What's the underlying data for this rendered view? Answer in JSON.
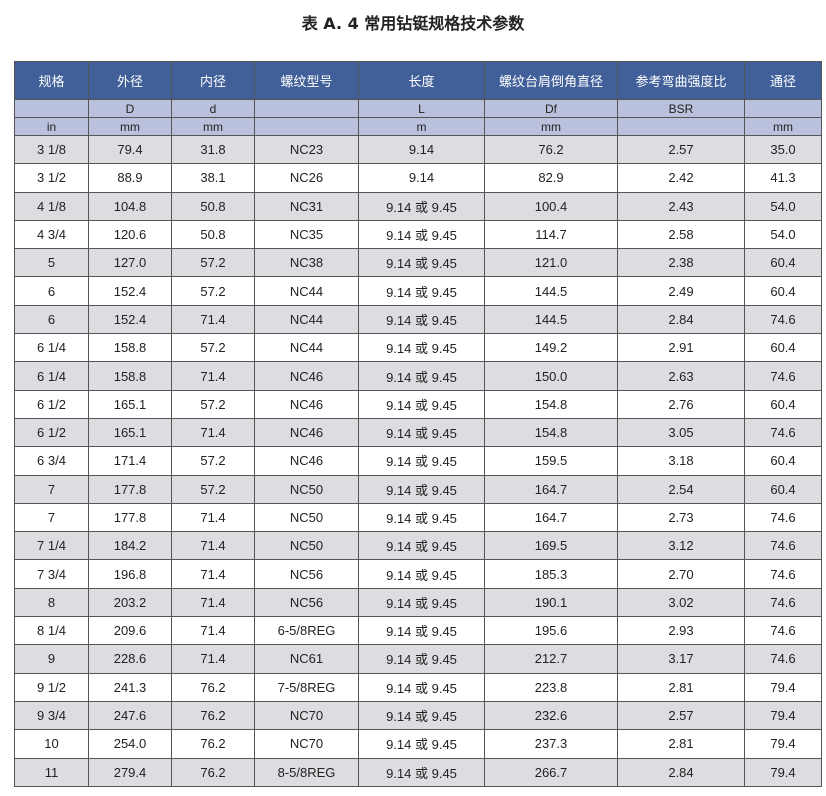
{
  "title": "表 A. 4 常用钻铤规格技术参数",
  "headers": [
    "规格",
    "外径",
    "内径",
    "螺纹型号",
    "长度",
    "螺纹台肩倒角直径",
    "参考弯曲强度比",
    "通径"
  ],
  "symbols": [
    "",
    "D",
    "d",
    "",
    "L",
    "Df",
    "BSR",
    ""
  ],
  "units": [
    "in",
    "mm",
    "mm",
    "",
    "m",
    "mm",
    "",
    "mm"
  ],
  "rows": [
    [
      "3 1/8",
      "79.4",
      "31.8",
      "NC23",
      "9.14",
      "76.2",
      "2.57",
      "35.0"
    ],
    [
      "3 1/2",
      "88.9",
      "38.1",
      "NC26",
      "9.14",
      "82.9",
      "2.42",
      "41.3"
    ],
    [
      "4 1/8",
      "104.8",
      "50.8",
      "NC31",
      "9.14 或 9.45",
      "100.4",
      "2.43",
      "54.0"
    ],
    [
      "4 3/4",
      "120.6",
      "50.8",
      "NC35",
      "9.14 或 9.45",
      "114.7",
      "2.58",
      "54.0"
    ],
    [
      "5",
      "127.0",
      "57.2",
      "NC38",
      "9.14 或 9.45",
      "121.0",
      "2.38",
      "60.4"
    ],
    [
      "6",
      "152.4",
      "57.2",
      "NC44",
      "9.14 或 9.45",
      "144.5",
      "2.49",
      "60.4"
    ],
    [
      "6",
      "152.4",
      "71.4",
      "NC44",
      "9.14 或 9.45",
      "144.5",
      "2.84",
      "74.6"
    ],
    [
      "6 1/4",
      "158.8",
      "57.2",
      "NC44",
      "9.14 或 9.45",
      "149.2",
      "2.91",
      "60.4"
    ],
    [
      "6 1/4",
      "158.8",
      "71.4",
      "NC46",
      "9.14 或 9.45",
      "150.0",
      "2.63",
      "74.6"
    ],
    [
      "6 1/2",
      "165.1",
      "57.2",
      "NC46",
      "9.14 或 9.45",
      "154.8",
      "2.76",
      "60.4"
    ],
    [
      "6 1/2",
      "165.1",
      "71.4",
      "NC46",
      "9.14 或 9.45",
      "154.8",
      "3.05",
      "74.6"
    ],
    [
      "6 3/4",
      "171.4",
      "57.2",
      "NC46",
      "9.14 或 9.45",
      "159.5",
      "3.18",
      "60.4"
    ],
    [
      "7",
      "177.8",
      "57.2",
      "NC50",
      "9.14 或 9.45",
      "164.7",
      "2.54",
      "60.4"
    ],
    [
      "7",
      "177.8",
      "71.4",
      "NC50",
      "9.14 或 9.45",
      "164.7",
      "2.73",
      "74.6"
    ],
    [
      "7 1/4",
      "184.2",
      "71.4",
      "NC50",
      "9.14 或 9.45",
      "169.5",
      "3.12",
      "74.6"
    ],
    [
      "7 3/4",
      "196.8",
      "71.4",
      "NC56",
      "9.14 或 9.45",
      "185.3",
      "2.70",
      "74.6"
    ],
    [
      "8",
      "203.2",
      "71.4",
      "NC56",
      "9.14 或 9.45",
      "190.1",
      "3.02",
      "74.6"
    ],
    [
      "8 1/4",
      "209.6",
      "71.4",
      "6-5/8REG",
      "9.14 或 9.45",
      "195.6",
      "2.93",
      "74.6"
    ],
    [
      "9",
      "228.6",
      "71.4",
      "NC61",
      "9.14 或 9.45",
      "212.7",
      "3.17",
      "74.6"
    ],
    [
      "9 1/2",
      "241.3",
      "76.2",
      "7-5/8REG",
      "9.14 或 9.45",
      "223.8",
      "2.81",
      "79.4"
    ],
    [
      "9 3/4",
      "247.6",
      "76.2",
      "NC70",
      "9.14 或 9.45",
      "232.6",
      "2.57",
      "79.4"
    ],
    [
      "10",
      "254.0",
      "76.2",
      "NC70",
      "9.14 或 9.45",
      "237.3",
      "2.81",
      "79.4"
    ],
    [
      "11",
      "279.4",
      "76.2",
      "8-5/8REG",
      "9.14 或 9.45",
      "266.7",
      "2.84",
      "79.4"
    ]
  ]
}
